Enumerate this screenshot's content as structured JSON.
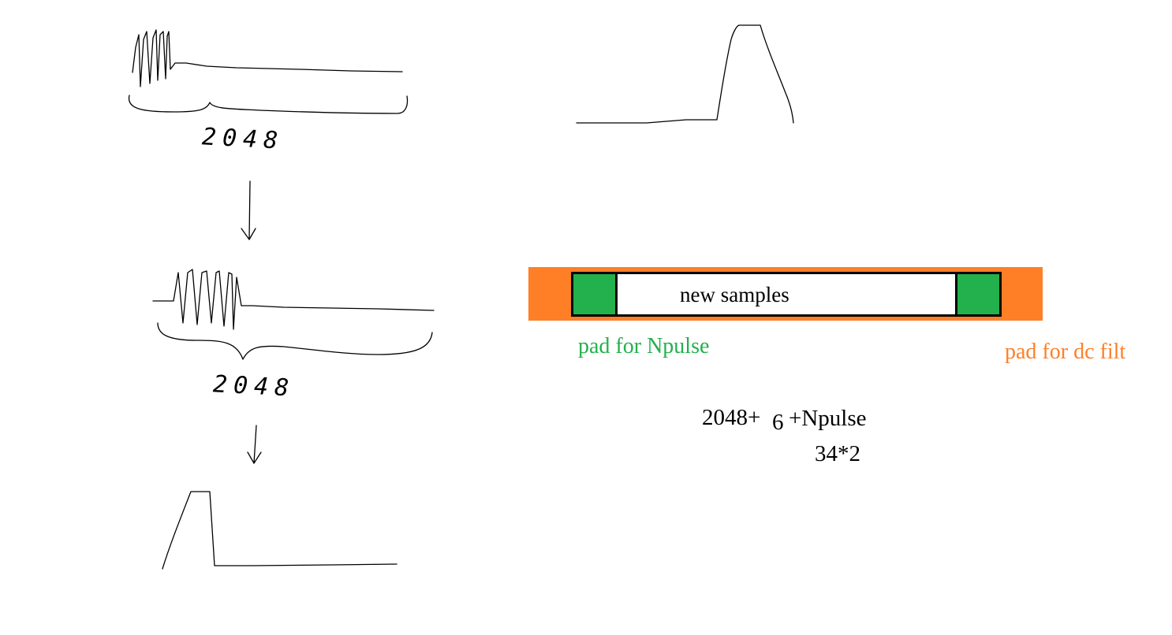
{
  "diagram": {
    "count_labels": [
      "2048",
      "2048"
    ],
    "buffer": {
      "center_label": "new samples",
      "pad_npulse_label": "pad for Npulse",
      "pad_dc_label": "pad for dc filt"
    },
    "formula": {
      "part1": "2048+",
      "part2": "6",
      "part3": "+Npulse",
      "part4": "34*2"
    }
  },
  "colors": {
    "orange": "#FF7F27",
    "green": "#22B14C",
    "ink": "#000000"
  }
}
